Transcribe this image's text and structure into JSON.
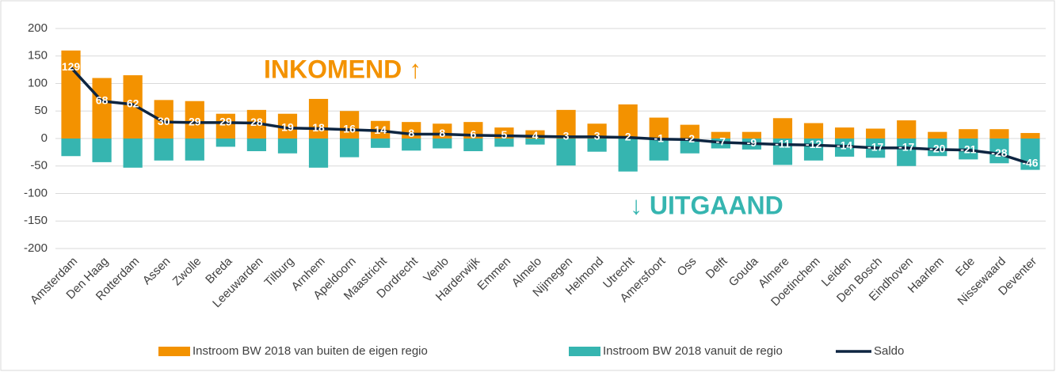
{
  "chart_data": {
    "type": "bar",
    "categories": [
      "Amsterdam",
      "Den Haag",
      "Rotterdam",
      "Assen",
      "Zwolle",
      "Breda",
      "Leeuwarden",
      "Tilburg",
      "Arnhem",
      "Apeldoorn",
      "Maastricht",
      "Dordrecht",
      "Venlo",
      "Harderwijk",
      "Emmen",
      "Almelo",
      "Nijmegen",
      "Helmond",
      "Utrecht",
      "Amersfoort",
      "Oss",
      "Delft",
      "Gouda",
      "Almere",
      "Doetinchem",
      "Leiden",
      "Den Bosch",
      "Eindhoven",
      "Haarlem",
      "Ede",
      "Nissewaard",
      "Deventer"
    ],
    "series": [
      {
        "name": "Instroom BW 2018 van buiten de eigen regio",
        "color": "#f39200",
        "values": [
          160,
          110,
          115,
          70,
          68,
          45,
          52,
          45,
          72,
          50,
          32,
          30,
          27,
          30,
          20,
          15,
          52,
          27,
          62,
          38,
          25,
          12,
          12,
          37,
          28,
          20,
          18,
          33,
          12,
          17,
          17,
          10
        ]
      },
      {
        "name": "Instroom BW 2018 vanuit de regio",
        "color": "#36b5b0",
        "values": [
          -32,
          -43,
          -53,
          -40,
          -40,
          -15,
          -23,
          -27,
          -53,
          -34,
          -17,
          -22,
          -18,
          -23,
          -15,
          -11,
          -49,
          -24,
          -60,
          -40,
          -27,
          -18,
          -20,
          -48,
          -40,
          -33,
          -35,
          -50,
          -32,
          -38,
          -45,
          -57
        ]
      },
      {
        "name": "Saldo",
        "type": "line",
        "color": "#0d2541",
        "values": [
          129,
          68,
          62,
          30,
          29,
          29,
          28,
          19,
          18,
          16,
          14,
          8,
          8,
          6,
          5,
          4,
          3,
          3,
          2,
          -1,
          -2,
          -7,
          -9,
          -11,
          -12,
          -14,
          -17,
          -17,
          -20,
          -21,
          -28,
          -46
        ]
      }
    ],
    "annotations": [
      {
        "text": "INKOMEND ↑",
        "color": "#f39200"
      },
      {
        "text": "↓ UITGAAND",
        "color": "#36b5b0"
      }
    ],
    "ylim": [
      -200,
      200
    ],
    "yticks": [
      -200,
      -150,
      -100,
      -50,
      0,
      50,
      100,
      150,
      200
    ],
    "grid": true,
    "legend": "bottom"
  }
}
